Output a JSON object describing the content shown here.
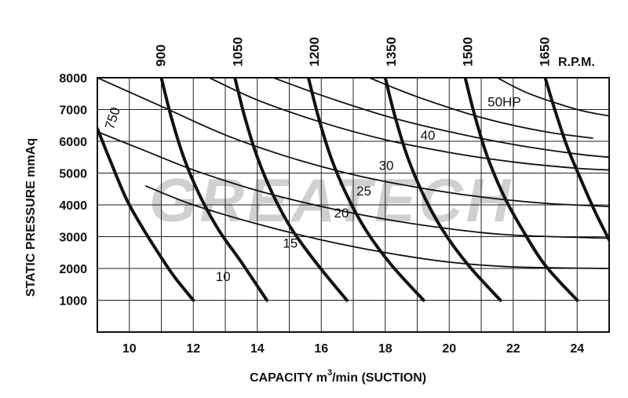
{
  "chart_data": {
    "type": "line",
    "title": "",
    "watermark": "GREATECH",
    "xlabel_prefix": "CAPACITY  m",
    "xlabel_sup": "3",
    "xlabel_suffix": "/min  (SUCTION)",
    "ylabel": "STATIC  PRESSURE  mmAq",
    "rpm_label": "R.P.M.",
    "xlim": [
      9,
      25
    ],
    "ylim": [
      0,
      8000
    ],
    "grid": true,
    "x_ticks": [
      "10",
      "12",
      "14",
      "16",
      "18",
      "20",
      "22",
      "24"
    ],
    "y_ticks": [
      "1000",
      "2000",
      "3000",
      "4000",
      "5000",
      "6000",
      "7000",
      "8000"
    ],
    "rpm_curves": [
      {
        "name": "750",
        "points": [
          [
            9.0,
            6400
          ],
          [
            9.4,
            5400
          ],
          [
            9.9,
            4200
          ],
          [
            10.4,
            3300
          ],
          [
            10.9,
            2500
          ],
          [
            11.4,
            1750
          ],
          [
            12.0,
            1000
          ]
        ]
      },
      {
        "name": "900",
        "points": [
          [
            11.0,
            8000
          ],
          [
            11.3,
            6800
          ],
          [
            11.7,
            5500
          ],
          [
            12.2,
            4300
          ],
          [
            12.8,
            3200
          ],
          [
            13.5,
            2200
          ],
          [
            14.3,
            1000
          ]
        ]
      },
      {
        "name": "1050",
        "points": [
          [
            13.3,
            8000
          ],
          [
            13.6,
            6800
          ],
          [
            14.0,
            5500
          ],
          [
            14.5,
            4300
          ],
          [
            15.1,
            3200
          ],
          [
            15.9,
            2100
          ],
          [
            16.8,
            1000
          ]
        ]
      },
      {
        "name": "1200",
        "points": [
          [
            15.6,
            8000
          ],
          [
            15.9,
            6800
          ],
          [
            16.3,
            5500
          ],
          [
            16.8,
            4300
          ],
          [
            17.4,
            3200
          ],
          [
            18.2,
            2100
          ],
          [
            19.2,
            1000
          ]
        ]
      },
      {
        "name": "1350",
        "points": [
          [
            18.0,
            8000
          ],
          [
            18.3,
            6800
          ],
          [
            18.7,
            5500
          ],
          [
            19.2,
            4300
          ],
          [
            19.8,
            3200
          ],
          [
            20.6,
            2100
          ],
          [
            21.6,
            1000
          ]
        ]
      },
      {
        "name": "1500",
        "points": [
          [
            20.5,
            8000
          ],
          [
            20.8,
            6800
          ],
          [
            21.2,
            5500
          ],
          [
            21.7,
            4300
          ],
          [
            22.3,
            3200
          ],
          [
            23.0,
            2100
          ],
          [
            24.0,
            1000
          ]
        ]
      },
      {
        "name": "1650",
        "points": [
          [
            23.0,
            8000
          ],
          [
            23.3,
            7000
          ],
          [
            23.7,
            5800
          ],
          [
            24.2,
            4600
          ],
          [
            24.6,
            3700
          ],
          [
            25.0,
            2900
          ]
        ]
      }
    ],
    "hp_curves": [
      {
        "name": "10",
        "points": [
          [
            10.5,
            4600
          ],
          [
            12,
            4000
          ],
          [
            14,
            3400
          ],
          [
            16,
            2900
          ],
          [
            18,
            2500
          ],
          [
            20,
            2200
          ],
          [
            22,
            2050
          ],
          [
            25,
            2000
          ]
        ]
      },
      {
        "name": "15",
        "points": [
          [
            9.0,
            6300
          ],
          [
            10.5,
            5700
          ],
          [
            12,
            5100
          ],
          [
            14,
            4450
          ],
          [
            16,
            3950
          ],
          [
            18,
            3550
          ],
          [
            20,
            3250
          ],
          [
            22,
            3050
          ],
          [
            25,
            2950
          ]
        ]
      },
      {
        "name": "20",
        "points": [
          [
            9.0,
            8000
          ],
          [
            11,
            7100
          ],
          [
            13,
            6200
          ],
          [
            15,
            5500
          ],
          [
            17,
            4950
          ],
          [
            19,
            4550
          ],
          [
            21,
            4250
          ],
          [
            23,
            4050
          ],
          [
            25,
            3950
          ]
        ]
      },
      {
        "name": "25",
        "points": [
          [
            12.5,
            8000
          ],
          [
            14,
            7300
          ],
          [
            16,
            6600
          ],
          [
            18,
            6050
          ],
          [
            20,
            5650
          ],
          [
            22,
            5350
          ],
          [
            24,
            5150
          ],
          [
            25,
            5100
          ]
        ]
      },
      {
        "name": "30",
        "points": [
          [
            14.5,
            8000
          ],
          [
            16,
            7450
          ],
          [
            18,
            6800
          ],
          [
            20,
            6300
          ],
          [
            22,
            5900
          ],
          [
            24,
            5600
          ],
          [
            25,
            5500
          ]
        ]
      },
      {
        "name": "40",
        "points": [
          [
            17.5,
            8000
          ],
          [
            19,
            7400
          ],
          [
            21,
            6750
          ],
          [
            23,
            6300
          ],
          [
            24.5,
            6100
          ]
        ]
      },
      {
        "name": "50HP",
        "points": [
          [
            21.5,
            8000
          ],
          [
            22.5,
            7500
          ],
          [
            24.0,
            7000
          ],
          [
            25.0,
            6800
          ]
        ]
      }
    ]
  }
}
